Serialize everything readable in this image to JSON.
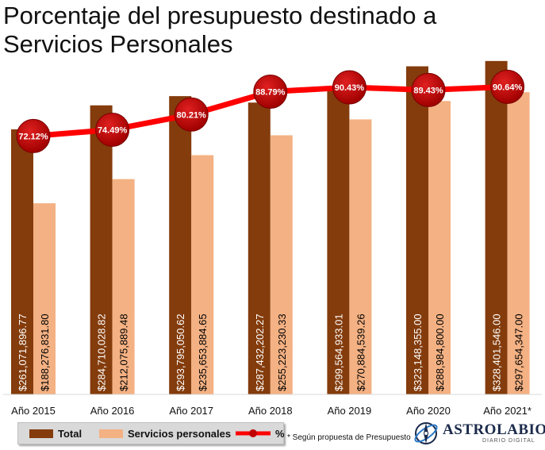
{
  "chart_data": {
    "type": "bar",
    "title_lines": [
      "Porcentaje del presupuesto destinado a",
      "Servicios Personales"
    ],
    "categories": [
      "Año 2015",
      "Año 2016",
      "Año 2017",
      "Año 2018",
      "Año 2019",
      "Año 2020",
      "Año 2021*"
    ],
    "series": [
      {
        "name": "Total",
        "kind": "bar",
        "color": "#843c0c",
        "values": [
          261071896.77,
          284710028.82,
          293795050.62,
          287432202.27,
          299564933.01,
          323148355.0,
          328401546.0
        ],
        "labels": [
          "$261,071,896.77",
          "$284,710,028.82",
          "$293,795,050.62",
          "$287,432,202.27",
          "$299,564,933.01",
          "$323,148,355.00",
          "$328,401,546.00"
        ]
      },
      {
        "name": "Servicios personales",
        "kind": "bar",
        "color": "#f4b183",
        "values": [
          188276831.8,
          212075889.48,
          235653884.65,
          255223230.33,
          270884539.26,
          288984800.0,
          297654347.0
        ],
        "labels": [
          "$188,276,831.80",
          "$212,075,889.48",
          "$235,653,884.65",
          "$255,223,230.33",
          "$270,884,539.26",
          "$288,984,800.00",
          "$297,654,347.00"
        ]
      },
      {
        "name": "%",
        "kind": "line",
        "color": "#ff0000",
        "marker_color": "#c00000",
        "values": [
          72.12,
          74.49,
          80.21,
          88.79,
          90.43,
          89.43,
          90.64
        ],
        "labels": [
          "72.12%",
          "74.49%",
          "80.21%",
          "88.79%",
          "90.43%",
          "89.43%",
          "90.64%"
        ]
      }
    ],
    "ylim": [
      0,
      340000000
    ],
    "line_ylim": [
      0,
      100
    ],
    "grid": false,
    "legend_position": "bottom-left"
  },
  "footnote": "* Según propuesta de Presupuesto",
  "logo": {
    "name": "ASTROLABIO",
    "tagline": "DIARIO DIGITAL"
  }
}
